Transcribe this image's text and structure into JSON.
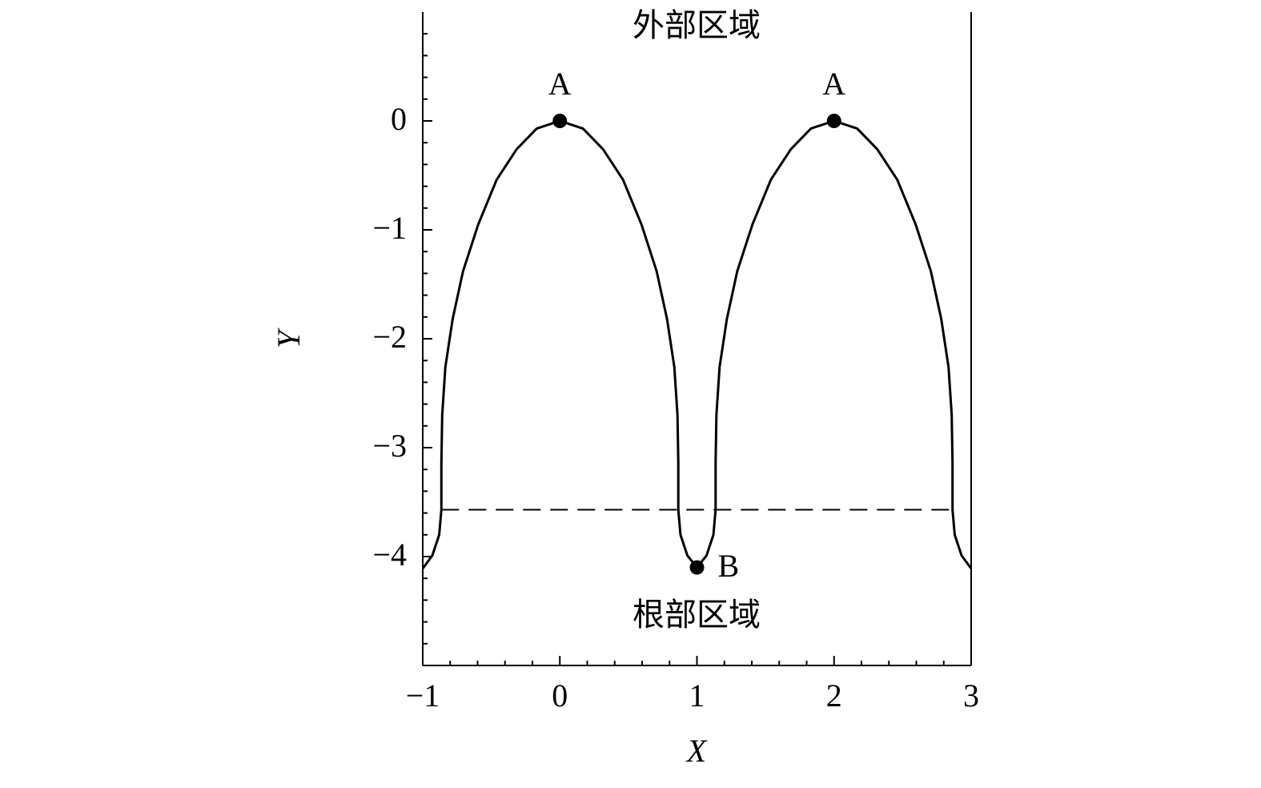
{
  "chart_data": {
    "type": "line",
    "xlabel": "X",
    "ylabel": "Y",
    "xlim": [
      -1,
      3
    ],
    "ylim": [
      -5,
      1
    ],
    "xticks": [
      {
        "value": -1,
        "label": "−1"
      },
      0,
      1,
      2,
      3
    ],
    "yticks": [
      0,
      {
        "value": -1,
        "label": "−1"
      },
      {
        "value": -2,
        "label": "−2"
      },
      {
        "value": -3,
        "label": "−3"
      },
      {
        "value": -4,
        "label": "−4"
      }
    ],
    "xminorticks": [
      -0.8,
      -0.6,
      -0.4,
      -0.2,
      0.2,
      0.4,
      0.6,
      0.8,
      1.2,
      1.4,
      1.6,
      1.8,
      2.2,
      2.4,
      2.6,
      2.8
    ],
    "yminorticks": [
      0.8,
      0.6,
      0.4,
      0.2,
      -0.2,
      -0.4,
      -0.6,
      -0.8,
      -1.2,
      -1.4,
      -1.6,
      -1.8,
      -2.2,
      -2.4,
      -2.6,
      -2.8,
      -3.2,
      -3.4,
      -3.6,
      -3.8,
      -4.2,
      -4.4,
      -4.6,
      -4.8
    ],
    "color": "#000000",
    "x": [
      -1,
      -0.93,
      -0.88,
      -0.864,
      -0.864,
      -0.858,
      -0.835,
      -0.782,
      -0.706,
      -0.595,
      -0.461,
      -0.315,
      -0.169,
      0,
      0.169,
      0.315,
      0.461,
      0.595,
      0.706,
      0.782,
      0.835,
      0.858,
      0.864,
      0.864,
      0.88,
      0.93,
      1,
      1.07,
      1.12,
      1.136,
      1.136,
      1.142,
      1.165,
      1.218,
      1.294,
      1.405,
      1.539,
      1.685,
      1.831,
      2,
      2.169,
      2.315,
      2.461,
      2.595,
      2.706,
      2.782,
      2.835,
      2.858,
      2.864,
      2.864,
      2.88,
      2.93,
      3
    ],
    "y": [
      -4.11,
      -3.99,
      -3.8,
      -3.57,
      -3.14,
      -2.7,
      -2.26,
      -1.82,
      -1.38,
      -0.95,
      -0.54,
      -0.26,
      -0.07,
      0,
      -0.07,
      -0.26,
      -0.54,
      -0.95,
      -1.38,
      -1.82,
      -2.26,
      -2.7,
      -3.14,
      -3.57,
      -3.8,
      -3.99,
      -4.1,
      -3.99,
      -3.8,
      -3.57,
      -3.14,
      -2.7,
      -2.26,
      -1.82,
      -1.38,
      -0.95,
      -0.54,
      -0.26,
      -0.07,
      0,
      -0.07,
      -0.26,
      -0.54,
      -0.95,
      -1.38,
      -1.82,
      -2.26,
      -2.7,
      -3.14,
      -3.57,
      -3.8,
      -3.99,
      -4.11
    ],
    "hline": {
      "y": -3.57,
      "xmin": -0.864,
      "xmax": 2.864
    },
    "points": {
      "x": [
        0,
        2,
        1
      ],
      "y": [
        0,
        0,
        -4.1
      ],
      "labels": [
        "A",
        "A",
        "B"
      ]
    },
    "annotations": [
      "外部区域",
      "根部区域"
    ]
  }
}
